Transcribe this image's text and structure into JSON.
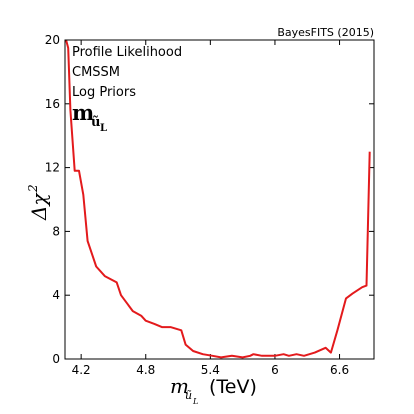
{
  "chart_data": {
    "type": "line",
    "credit": "BayesFITS (2015)",
    "annotations": [
      "Profile Likelihood",
      "CMSSM",
      "Log Priors"
    ],
    "label_main": "m",
    "label_sub": "ũ",
    "label_subsub": "L",
    "ylabel": "Δχ",
    "ylabel_sup": "2",
    "xlabel_symbol": "m",
    "xlabel_unit": "(TeV)",
    "xlim": [
      4.05,
      6.92
    ],
    "ylim": [
      0,
      20
    ],
    "xticks": [
      "4.2",
      "4.8",
      "5.4",
      "6",
      "6.6"
    ],
    "yticks": [
      "0",
      "4",
      "8",
      "12",
      "16",
      "20"
    ],
    "grid": false,
    "line_color": "#e31a1c",
    "series": [
      {
        "x": [
          4.06,
          4.08,
          4.1,
          4.14,
          4.18,
          4.22,
          4.26,
          4.34,
          4.42,
          4.53,
          4.57,
          4.68,
          4.76,
          4.8,
          4.88,
          4.95,
          5.03,
          5.08,
          5.13,
          5.17,
          5.24,
          5.33,
          5.42,
          5.5,
          5.6,
          5.7,
          5.77,
          5.8,
          5.88,
          6.0,
          6.08,
          6.13,
          6.2,
          6.27,
          6.37,
          6.47,
          6.52,
          6.58,
          6.66,
          6.72,
          6.81,
          6.85,
          6.88
        ],
        "y": [
          20,
          19.5,
          15.6,
          11.8,
          11.8,
          10.3,
          7.4,
          5.8,
          5.2,
          4.8,
          4.0,
          3.0,
          2.7,
          2.4,
          2.2,
          2.0,
          2.0,
          1.9,
          1.8,
          0.9,
          0.5,
          0.3,
          0.2,
          0.1,
          0.2,
          0.1,
          0.2,
          0.3,
          0.2,
          0.2,
          0.3,
          0.2,
          0.3,
          0.2,
          0.4,
          0.7,
          0.4,
          1.8,
          3.8,
          4.1,
          4.5,
          4.6,
          13.0
        ]
      }
    ]
  }
}
